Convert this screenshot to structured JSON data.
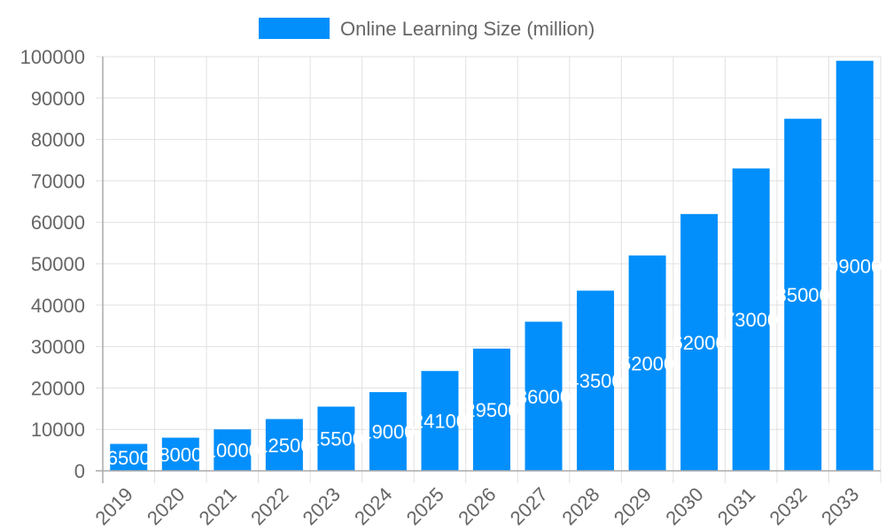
{
  "chart_data": {
    "type": "bar",
    "title": "",
    "xlabel": "",
    "ylabel": "",
    "legend": {
      "position": "top",
      "entries": [
        "Online Learning Size (million)"
      ]
    },
    "categories": [
      "2019",
      "2020",
      "2021",
      "2022",
      "2023",
      "2024",
      "2025",
      "2026",
      "2027",
      "2028",
      "2029",
      "2030",
      "2031",
      "2032",
      "2033"
    ],
    "series": [
      {
        "name": "Online Learning Size (million)",
        "values": [
          6500,
          8000,
          10000,
          12500,
          15500,
          19000,
          24100,
          29500,
          36000,
          43500,
          52000,
          62000,
          73000,
          85000,
          99000
        ],
        "color": "#038ffb"
      }
    ],
    "ylim": [
      0,
      100000
    ],
    "yticks": [
      0,
      10000,
      20000,
      30000,
      40000,
      50000,
      60000,
      70000,
      80000,
      90000,
      100000
    ],
    "grid": true,
    "data_labels": true,
    "xtick_rotation": -45
  },
  "colors": {
    "bar": "#038ffb",
    "grid": "#e0e0e0",
    "axis": "#aaaaaa",
    "text": "#666666",
    "label": "#ffffff"
  }
}
